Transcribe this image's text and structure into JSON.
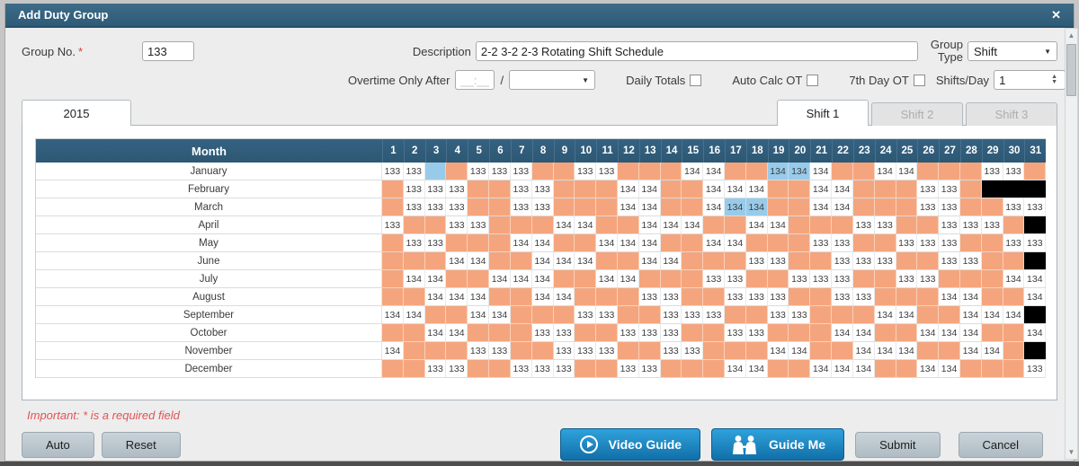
{
  "window": {
    "title": "Add Duty Group"
  },
  "icons": {
    "close": "✕",
    "caret_down": "▼",
    "spinner_up": "▲",
    "spinner_down": "▼",
    "scroll_up": "▲",
    "scroll_down": "▼"
  },
  "colors": {
    "titlebar": "#31607c",
    "table_header": "#31607c",
    "empty_cell": "#f5a57d",
    "highlight_cell": "#98cbea",
    "invalid_cell": "#000000",
    "accent_button": "#1b85c0",
    "required_text": "#e03c3c"
  },
  "form": {
    "group_no": {
      "label": "Group No.",
      "required_mark": "*",
      "value": "133"
    },
    "description": {
      "label": "Description",
      "value": "2-2 3-2 2-3 Rotating Shift Schedule"
    },
    "group_type": {
      "label_line1": "Group",
      "label_line2": "Type",
      "value": "Shift"
    },
    "overtime": {
      "label": "Overtime Only After",
      "time_placeholder": "__:__",
      "separator": "/",
      "dropdown_value": ""
    },
    "daily_totals": {
      "label": "Daily Totals",
      "checked": false
    },
    "auto_calc_ot": {
      "label": "Auto Calc OT",
      "checked": false
    },
    "seventh_day_ot": {
      "label": "7th Day OT",
      "checked": false
    },
    "shifts_per_day": {
      "label": "Shifts/Day",
      "value": "1"
    }
  },
  "tabs": {
    "year": "2015",
    "shifts": [
      {
        "label": "Shift 1",
        "state": "active"
      },
      {
        "label": "Shift 2",
        "state": "disabled"
      },
      {
        "label": "Shift 3",
        "state": "disabled"
      }
    ]
  },
  "schedule": {
    "month_header": "Month",
    "days": [
      1,
      2,
      3,
      4,
      5,
      6,
      7,
      8,
      9,
      10,
      11,
      12,
      13,
      14,
      15,
      16,
      17,
      18,
      19,
      20,
      21,
      22,
      23,
      24,
      25,
      26,
      27,
      28,
      29,
      30,
      31
    ],
    "legend": {
      ".": "empty",
      "#": "invalid-day",
      "~": "highlighted-empty",
      "*": "highlighted-value"
    },
    "rows": [
      {
        "month": "January",
        "cells": [
          "133",
          "133",
          "~",
          ".",
          "133",
          "133",
          "133",
          ".",
          ".",
          "133",
          "133",
          ".",
          ".",
          ".",
          "134",
          "134",
          ".",
          ".",
          "134*",
          "134*",
          "134",
          ".",
          ".",
          "134",
          "134",
          ".",
          ".",
          ".",
          "133",
          "133",
          "."
        ]
      },
      {
        "month": "February",
        "cells": [
          ".",
          "133",
          "133",
          "133",
          ".",
          ".",
          "133",
          "133",
          ".",
          ".",
          ".",
          "134",
          "134",
          ".",
          ".",
          "134",
          "134",
          "134",
          ".",
          ".",
          "134",
          "134",
          ".",
          ".",
          ".",
          "133",
          "133",
          ".",
          "#",
          "#",
          "#"
        ]
      },
      {
        "month": "March",
        "cells": [
          ".",
          "133",
          "133",
          "133",
          ".",
          ".",
          "133",
          "133",
          ".",
          ".",
          ".",
          "134",
          "134",
          ".",
          ".",
          "134",
          "134*",
          "134*",
          ".",
          ".",
          "134",
          "134",
          ".",
          ".",
          ".",
          "133",
          "133",
          ".",
          ".",
          "133",
          "133"
        ]
      },
      {
        "month": "April",
        "cells": [
          "133",
          ".",
          ".",
          "133",
          "133",
          ".",
          ".",
          ".",
          "134",
          "134",
          ".",
          ".",
          "134",
          "134",
          "134",
          ".",
          ".",
          "134",
          "134",
          ".",
          ".",
          ".",
          "133",
          "133",
          ".",
          ".",
          "133",
          "133",
          "133",
          ".",
          "#"
        ]
      },
      {
        "month": "May",
        "cells": [
          ".",
          "133",
          "133",
          ".",
          ".",
          ".",
          "134",
          "134",
          ".",
          ".",
          "134",
          "134",
          "134",
          ".",
          ".",
          "134",
          "134",
          ".",
          ".",
          ".",
          "133",
          "133",
          ".",
          ".",
          "133",
          "133",
          "133",
          ".",
          ".",
          "133",
          "133"
        ]
      },
      {
        "month": "June",
        "cells": [
          ".",
          ".",
          ".",
          "134",
          "134",
          ".",
          ".",
          "134",
          "134",
          "134",
          ".",
          ".",
          "134",
          "134",
          ".",
          ".",
          ".",
          "133",
          "133",
          ".",
          ".",
          "133",
          "133",
          "133",
          ".",
          ".",
          "133",
          "133",
          ".",
          ".",
          "#"
        ]
      },
      {
        "month": "July",
        "cells": [
          ".",
          "134",
          "134",
          ".",
          ".",
          "134",
          "134",
          "134",
          ".",
          ".",
          "134",
          "134",
          ".",
          ".",
          ".",
          "133",
          "133",
          ".",
          ".",
          "133",
          "133",
          "133",
          ".",
          ".",
          "133",
          "133",
          ".",
          ".",
          ".",
          "134",
          "134"
        ]
      },
      {
        "month": "August",
        "cells": [
          ".",
          ".",
          "134",
          "134",
          "134",
          ".",
          ".",
          "134",
          "134",
          ".",
          ".",
          ".",
          "133",
          "133",
          ".",
          ".",
          "133",
          "133",
          "133",
          ".",
          ".",
          "133",
          "133",
          ".",
          ".",
          ".",
          "134",
          "134",
          ".",
          ".",
          "134"
        ]
      },
      {
        "month": "September",
        "cells": [
          "134",
          "134",
          ".",
          ".",
          "134",
          "134",
          ".",
          ".",
          ".",
          "133",
          "133",
          ".",
          ".",
          "133",
          "133",
          "133",
          ".",
          ".",
          "133",
          "133",
          ".",
          ".",
          ".",
          "134",
          "134",
          ".",
          ".",
          "134",
          "134",
          "134",
          "#"
        ]
      },
      {
        "month": "October",
        "cells": [
          ".",
          ".",
          "134",
          "134",
          ".",
          ".",
          ".",
          "133",
          "133",
          ".",
          ".",
          "133",
          "133",
          "133",
          ".",
          ".",
          "133",
          "133",
          ".",
          ".",
          ".",
          "134",
          "134",
          ".",
          ".",
          "134",
          "134",
          "134",
          ".",
          ".",
          "134"
        ]
      },
      {
        "month": "November",
        "cells": [
          "134",
          ".",
          ".",
          ".",
          "133",
          "133",
          ".",
          ".",
          "133",
          "133",
          "133",
          ".",
          ".",
          "133",
          "133",
          ".",
          ".",
          ".",
          "134",
          "134",
          ".",
          ".",
          "134",
          "134",
          "134",
          ".",
          ".",
          "134",
          "134",
          ".",
          "#"
        ]
      },
      {
        "month": "December",
        "cells": [
          ".",
          ".",
          "133",
          "133",
          ".",
          ".",
          "133",
          "133",
          "133",
          ".",
          ".",
          "133",
          "133",
          ".",
          ".",
          ".",
          "134",
          "134",
          ".",
          ".",
          "134",
          "134",
          "134",
          ".",
          ".",
          "134",
          "134",
          ".",
          ".",
          ".",
          "133"
        ]
      }
    ]
  },
  "footer": {
    "note": "Important: * is a required field"
  },
  "buttons": {
    "auto": "Auto",
    "reset": "Reset",
    "video_guide": "Video Guide",
    "guide_me": "Guide Me",
    "submit": "Submit",
    "cancel": "Cancel"
  }
}
